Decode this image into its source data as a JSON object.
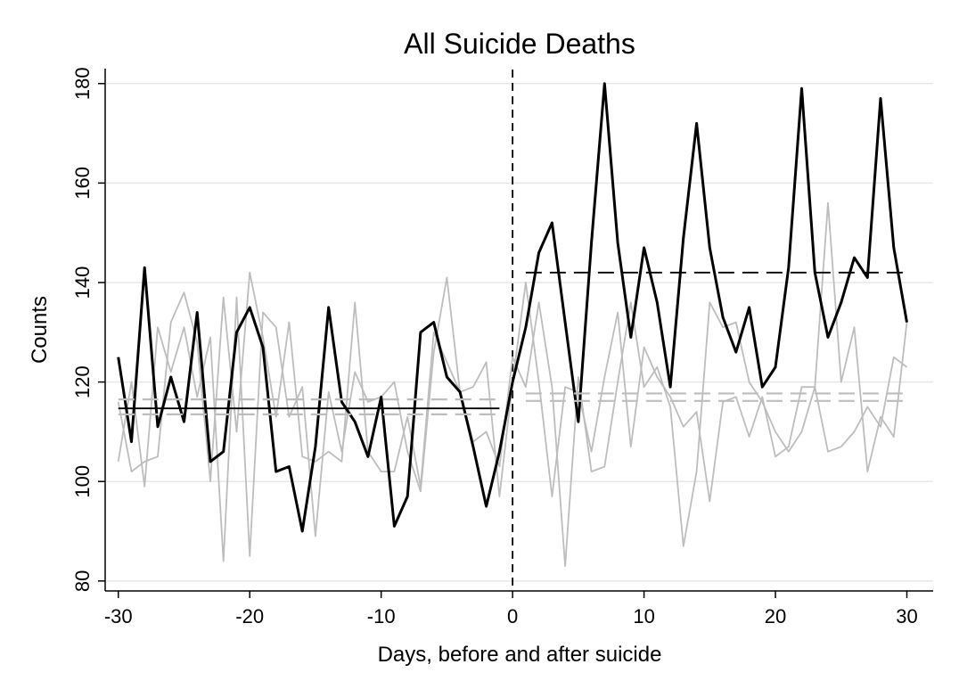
{
  "chart_data": {
    "type": "line",
    "title": "All Suicide Deaths",
    "xlabel": "Days, before and after suicide",
    "ylabel": "Counts",
    "xlim": [
      -31,
      32
    ],
    "ylim": [
      78,
      183
    ],
    "xticks": [
      -30,
      -20,
      -10,
      0,
      10,
      20,
      30
    ],
    "yticks": [
      80,
      100,
      120,
      140,
      160,
      180
    ],
    "grid": true,
    "vline_x": 0,
    "series": [
      {
        "color": "#000000",
        "x": [
          -30,
          -29,
          -28,
          -27,
          -26,
          -25,
          -24,
          -23,
          -22,
          -21,
          -20,
          -19,
          -18,
          -17,
          -16,
          -15,
          -14,
          -13,
          -12,
          -11,
          -10,
          -9,
          -8,
          -7,
          -6,
          -5,
          -4,
          -3,
          -2,
          -1,
          0,
          1,
          2,
          3,
          4,
          5,
          6,
          7,
          8,
          9,
          10,
          11,
          12,
          13,
          14,
          15,
          16,
          17,
          18,
          19,
          20,
          21,
          22,
          23,
          24,
          25,
          26,
          27,
          28,
          29,
          30
        ],
        "values": [
          125,
          108,
          143,
          111,
          121,
          112,
          134,
          104,
          106,
          130,
          135,
          127,
          102,
          103,
          90,
          107,
          135,
          116,
          112,
          105,
          117,
          91,
          97,
          130,
          132,
          121,
          118,
          107,
          95,
          106,
          120,
          131,
          146,
          152,
          132,
          112,
          148,
          180,
          148,
          129,
          147,
          136,
          119,
          149,
          172,
          147,
          133,
          126,
          135,
          119,
          123,
          143,
          179,
          142,
          129,
          136,
          145,
          141,
          177,
          147,
          132
        ]
      },
      {
        "color": "#bdbdbd",
        "x": [
          -30,
          -29,
          -28,
          -27,
          -26,
          -25,
          -24,
          -23,
          -22,
          -21,
          -20,
          -19,
          -18,
          -17,
          -16,
          -15,
          -14,
          -13,
          -12,
          -11,
          -10,
          -9,
          -8,
          -7,
          -6,
          -5,
          -4,
          -3,
          -2,
          -1,
          0,
          1,
          2,
          3,
          4,
          5,
          6,
          7,
          8,
          9,
          10,
          11,
          12,
          13,
          14,
          15,
          16,
          17,
          18,
          19,
          20,
          21,
          22,
          23,
          24,
          25,
          26,
          27,
          28,
          29,
          30
        ],
        "values": [
          104,
          120,
          99,
          131,
          122,
          131,
          117,
          129,
          84,
          137,
          85,
          134,
          131,
          113,
          119,
          89,
          118,
          106,
          122,
          116,
          117,
          120,
          106,
          98,
          126,
          141,
          118,
          119,
          124,
          97,
          120,
          140,
          120,
          97,
          119,
          118,
          106,
          121,
          134,
          107,
          127,
          121,
          117,
          111,
          114,
          96,
          116,
          117,
          109,
          117,
          105,
          107,
          119,
          119,
          156,
          120,
          131,
          102,
          113,
          109,
          132
        ]
      },
      {
        "color": "#bdbdbd",
        "x": [
          -30,
          -29,
          -28,
          -27,
          -26,
          -25,
          -24,
          -23,
          -22,
          -21,
          -20,
          -19,
          -18,
          -17,
          -16,
          -15,
          -14,
          -13,
          -12,
          -11,
          -10,
          -9,
          -8,
          -7,
          -6,
          -5,
          -4,
          -3,
          -2,
          -1,
          0,
          1,
          2,
          3,
          4,
          5,
          6,
          7,
          8,
          9,
          10,
          11,
          12,
          13,
          14,
          15,
          16,
          17,
          18,
          19,
          20,
          21,
          22,
          23,
          24,
          25,
          26,
          27,
          28,
          29,
          30
        ],
        "values": [
          116,
          102,
          104,
          105,
          132,
          138,
          128,
          100,
          137,
          110,
          142,
          129,
          113,
          132,
          105,
          104,
          106,
          104,
          136,
          106,
          102,
          102,
          113,
          99,
          130,
          124,
          118,
          108,
          110,
          103,
          125,
          119,
          136,
          119,
          83,
          121,
          102,
          103,
          120,
          136,
          119,
          123,
          115,
          87,
          102,
          136,
          131,
          132,
          120,
          116,
          110,
          106,
          110,
          119,
          106,
          107,
          110,
          115,
          111,
          125,
          123
        ]
      }
    ],
    "mean_lines": [
      {
        "value": 114.7,
        "x": [
          -30,
          -1
        ],
        "color": "#000000",
        "dash": false
      },
      {
        "value": 116.5,
        "x": [
          -30,
          -1
        ],
        "color": "#bdbdbd",
        "dash": true
      },
      {
        "value": 113.5,
        "x": [
          -30,
          -1
        ],
        "color": "#bdbdbd",
        "dash": true
      },
      {
        "value": 142,
        "x": [
          1,
          30
        ],
        "color": "#000000",
        "dash": true
      },
      {
        "value": 117.7,
        "x": [
          1,
          30
        ],
        "color": "#bdbdbd",
        "dash": true
      },
      {
        "value": 116.2,
        "x": [
          1,
          30
        ],
        "color": "#bdbdbd",
        "dash": true
      }
    ]
  }
}
